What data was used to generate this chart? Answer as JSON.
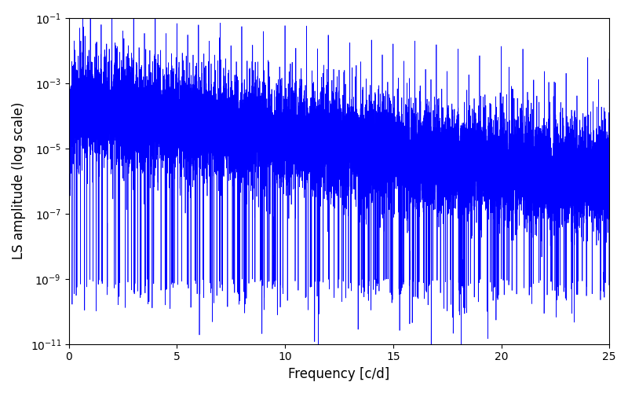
{
  "title": "",
  "xlabel": "Frequency [c/d]",
  "ylabel": "LS amplitude (log scale)",
  "line_color": "#0000ff",
  "line_width": 0.5,
  "xmin": 0,
  "xmax": 25,
  "ymin": 2e-12,
  "ymax": 0.5,
  "ylim_display_min": 1e-11,
  "ylim_display_max": 0.1,
  "background_color": "#ffffff",
  "figsize": [
    8.0,
    5.0
  ],
  "dpi": 100,
  "seed": 12345,
  "n_points": 15000,
  "base_amplitude": 0.0002,
  "spike_decay": 0.22,
  "noise_floor": 5e-07
}
